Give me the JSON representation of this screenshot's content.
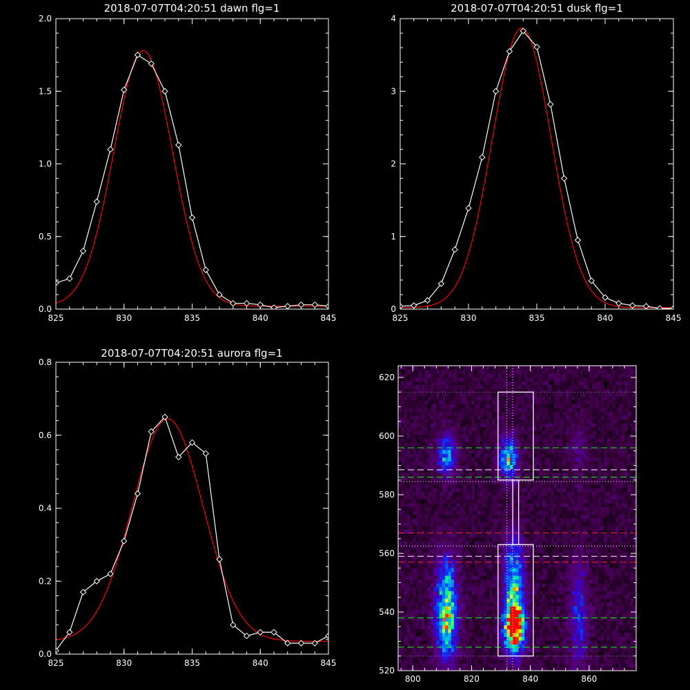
{
  "chart_data": [
    {
      "type": "line",
      "title": "2018-07-07T04:20:51 dawn flg=1",
      "xlim": [
        825,
        845
      ],
      "ylim": [
        0,
        2.0
      ],
      "xticks": [
        "825",
        "830",
        "835",
        "840",
        "845"
      ],
      "yticks": [
        "0.0",
        "0.5",
        "1.0",
        "1.5",
        "2.0"
      ],
      "series": [
        {
          "color": "#ffffff",
          "marker": "diamond",
          "x": [
            825,
            826,
            827,
            828,
            829,
            830,
            831,
            832,
            833,
            834,
            835,
            836,
            837,
            838,
            839,
            840,
            841,
            842,
            843,
            844,
            845
          ],
          "y": [
            0.18,
            0.21,
            0.4,
            0.74,
            1.1,
            1.51,
            1.75,
            1.69,
            1.5,
            1.13,
            0.63,
            0.27,
            0.1,
            0.04,
            0.04,
            0.03,
            0.01,
            0.02,
            0.03,
            0.03,
            0.02
          ]
        },
        {
          "color": "#ff0000",
          "fit": "gaussian",
          "amplitude": 1.76,
          "center": 831.4,
          "sigma": 2.15,
          "offset": 0.02
        }
      ]
    },
    {
      "type": "line",
      "title": "2018-07-07T04:20:51 dusk flg=1",
      "xlim": [
        825,
        845
      ],
      "ylim": [
        0,
        4
      ],
      "xticks": [
        "825",
        "830",
        "835",
        "840",
        "845"
      ],
      "yticks": [
        "0",
        "1",
        "2",
        "3",
        "4"
      ],
      "series": [
        {
          "color": "#ffffff",
          "marker": "diamond",
          "x": [
            825,
            826,
            827,
            828,
            829,
            830,
            831,
            832,
            833,
            834,
            835,
            836,
            837,
            838,
            839,
            840,
            841,
            842,
            843,
            844,
            845
          ],
          "y": [
            0.04,
            0.05,
            0.12,
            0.35,
            0.82,
            1.39,
            2.09,
            3.0,
            3.55,
            3.83,
            3.61,
            2.82,
            1.8,
            0.95,
            0.39,
            0.16,
            0.08,
            0.05,
            0.04,
            0.01,
            0.01
          ]
        },
        {
          "color": "#ff0000",
          "fit": "gaussian",
          "amplitude": 3.85,
          "center": 833.9,
          "sigma": 2.15,
          "offset": 0.02
        }
      ]
    },
    {
      "type": "line",
      "title": "2018-07-07T04:20:51 aurora flg=1",
      "xlim": [
        825,
        845
      ],
      "ylim": [
        0,
        0.8
      ],
      "xticks": [
        "825",
        "830",
        "835",
        "840",
        "845"
      ],
      "yticks": [
        "0.0",
        "0.2",
        "0.4",
        "0.6",
        "0.8"
      ],
      "series": [
        {
          "color": "#ffffff",
          "marker": "diamond",
          "x": [
            825,
            826,
            827,
            828,
            829,
            830,
            831,
            832,
            833,
            834,
            835,
            836,
            837,
            838,
            839,
            840,
            841,
            842,
            843,
            844,
            845
          ],
          "y": [
            0.01,
            0.06,
            0.17,
            0.2,
            0.22,
            0.31,
            0.44,
            0.61,
            0.65,
            0.54,
            0.58,
            0.55,
            0.26,
            0.08,
            0.05,
            0.06,
            0.06,
            0.03,
            0.03,
            0.03,
            0.05
          ]
        },
        {
          "color": "#ff0000",
          "fit": "gaussian",
          "amplitude": 0.61,
          "center": 833.2,
          "sigma": 2.6,
          "offset": 0.035
        }
      ]
    },
    {
      "type": "heatmap",
      "xlim": [
        795,
        876
      ],
      "ylim": [
        520,
        624
      ],
      "xticks": [
        "800",
        "820",
        "840",
        "860"
      ],
      "yticks": [
        "520",
        "540",
        "560",
        "580",
        "600",
        "620"
      ],
      "colormap": [
        "#000000",
        "#3a003f",
        "#55007a",
        "#3b00c8",
        "#0040ff",
        "#00a0ff",
        "#00ff80",
        "#ffff00",
        "#ff0000"
      ],
      "blobs": [
        {
          "x": 811,
          "y": 535,
          "sx": 2.6,
          "sy": 9,
          "amp": 0.62
        },
        {
          "x": 811,
          "y": 550,
          "sx": 2.6,
          "sy": 8,
          "amp": 0.35
        },
        {
          "x": 811,
          "y": 593,
          "sx": 2.3,
          "sy": 5,
          "amp": 0.48
        },
        {
          "x": 834,
          "y": 534,
          "sx": 2.4,
          "sy": 6,
          "amp": 1.0
        },
        {
          "x": 834,
          "y": 550,
          "sx": 2.4,
          "sy": 11,
          "amp": 0.55
        },
        {
          "x": 832,
          "y": 592,
          "sx": 2.2,
          "sy": 5,
          "amp": 0.6
        },
        {
          "x": 856,
          "y": 538,
          "sx": 2.2,
          "sy": 13,
          "amp": 0.3
        },
        {
          "x": 856,
          "y": 595,
          "sx": 2.0,
          "sy": 6,
          "amp": 0.14
        }
      ],
      "boxes": [
        {
          "x0": 829,
          "x1": 841,
          "y0": 585,
          "y1": 615,
          "color": "#ffffff"
        },
        {
          "x0": 829,
          "x1": 841,
          "y0": 525,
          "y1": 563,
          "color": "#ffffff"
        },
        {
          "x0": 834,
          "x1": 836,
          "y0": 563,
          "y1": 585,
          "color": "#ffffff"
        }
      ],
      "hlines": [
        {
          "y": 615,
          "color": "#ff44ff",
          "style": "dotted"
        },
        {
          "y": 596,
          "color": "#00ff00",
          "style": "dashed"
        },
        {
          "y": 588.5,
          "color": "#ffffff",
          "style": "dashed"
        },
        {
          "y": 586,
          "color": "#00ff00",
          "style": "dashed"
        },
        {
          "y": 584.5,
          "color": "#ffffff",
          "style": "dotted"
        },
        {
          "y": 567,
          "color": "#ff2020",
          "style": "dashed"
        },
        {
          "y": 562.5,
          "color": "#ffffff",
          "style": "dotted"
        },
        {
          "y": 559,
          "color": "#ffffff",
          "style": "dashed"
        },
        {
          "y": 557,
          "color": "#ff2020",
          "style": "dashed"
        },
        {
          "y": 538,
          "color": "#00ff00",
          "style": "dashed"
        },
        {
          "y": 528,
          "color": "#00ff00",
          "style": "dashed"
        },
        {
          "y": 525,
          "color": "#ff44ff",
          "style": "dotted"
        }
      ],
      "vlines": [
        {
          "x": 832,
          "color": "#ffffff",
          "style": "dotted"
        },
        {
          "x": 834,
          "color": "#ffffff",
          "style": "dotted"
        }
      ]
    }
  ]
}
